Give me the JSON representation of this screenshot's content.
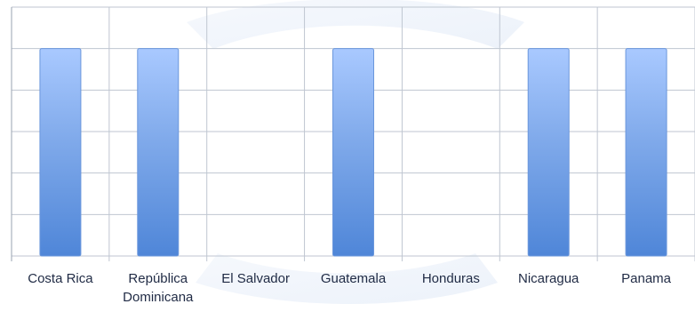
{
  "chart_data": {
    "type": "bar",
    "categories": [
      [
        "Costa Rica"
      ],
      [
        "República",
        "Dominicana"
      ],
      [
        "El Salvador"
      ],
      [
        "Guatemala"
      ],
      [
        "Honduras"
      ],
      [
        "Nicaragua"
      ],
      [
        "Panama"
      ]
    ],
    "values": [
      1,
      1,
      0,
      1,
      0,
      1,
      1
    ],
    "ylim": [
      0,
      1.2
    ],
    "grid": true,
    "legend": "none",
    "colors": {
      "bar_top": "#a9c9ff",
      "bar_mid": "#7fa9ea",
      "bar_bottom": "#4f86d8",
      "bar_stroke": "#6b97dc",
      "grid": "#bfc6d1",
      "axis": "#9aa3b0",
      "label": "#1f2a44"
    }
  }
}
